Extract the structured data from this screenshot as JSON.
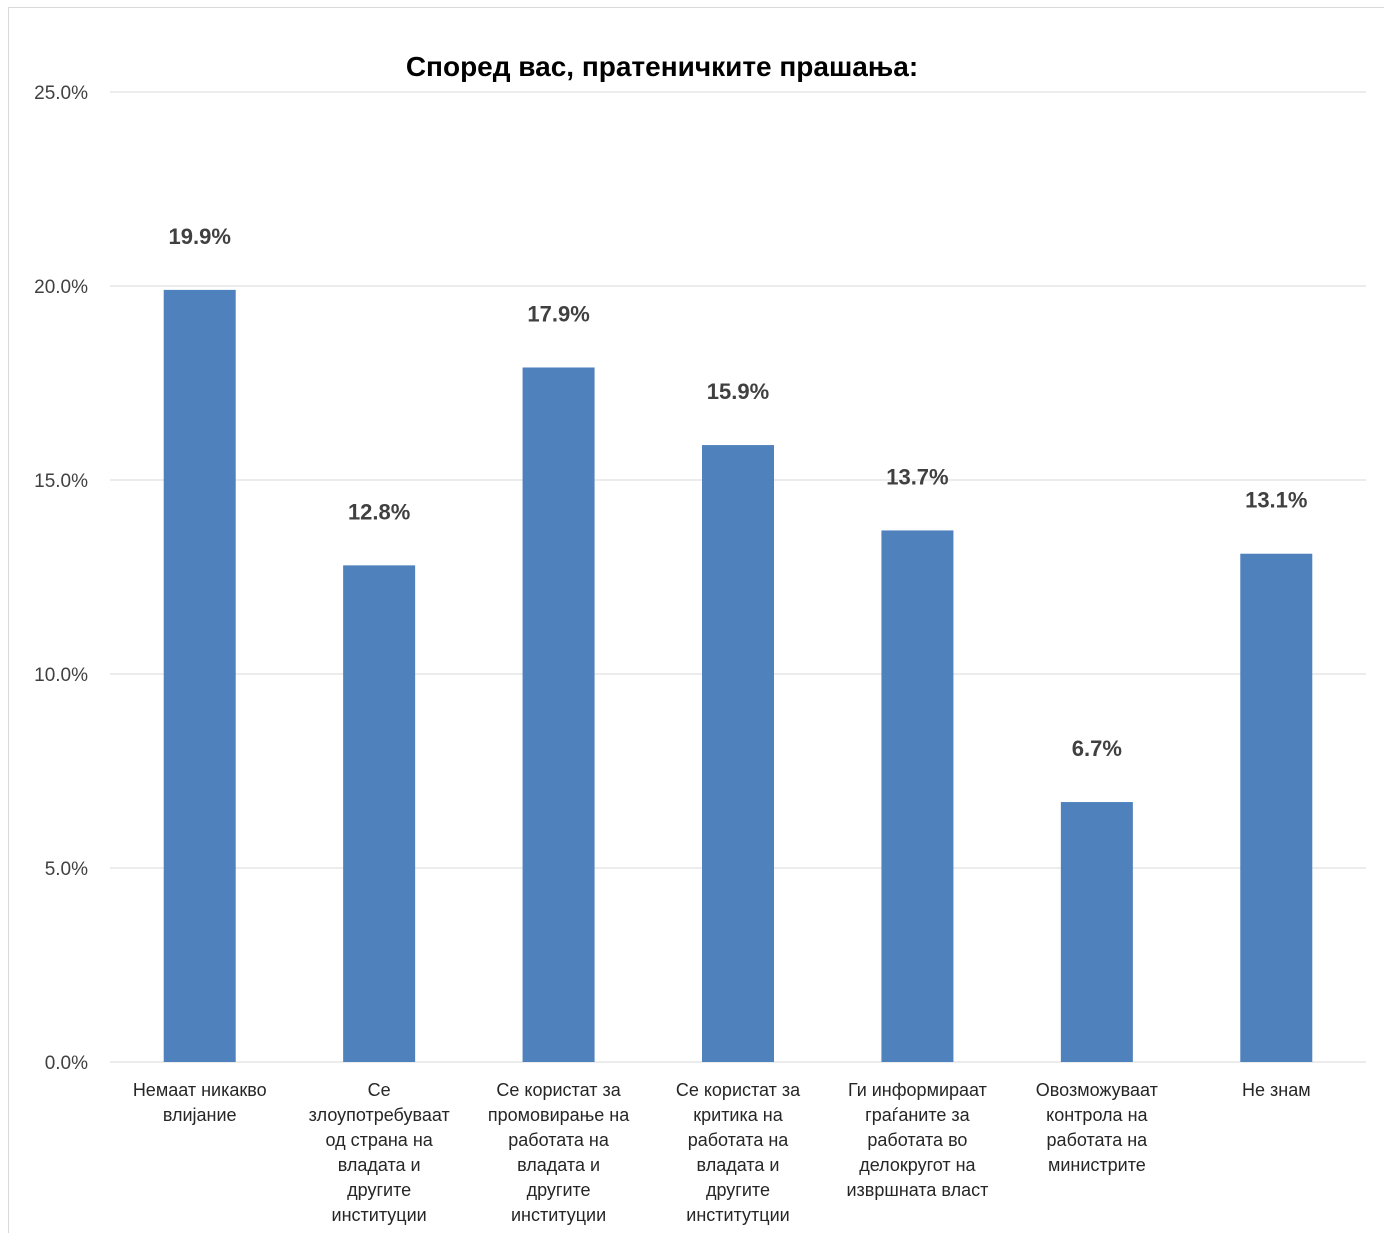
{
  "chart_data": {
    "type": "bar",
    "title": "Според вас, пратеничките прашања:",
    "xlabel": "",
    "ylabel": "",
    "ylim": [
      0,
      25
    ],
    "y_ticks": [
      "0.0%",
      "5.0%",
      "10.0%",
      "15.0%",
      "20.0%",
      "25.0%"
    ],
    "y_tick_values": [
      0,
      5,
      10,
      15,
      20,
      25
    ],
    "grid": true,
    "legend": "none",
    "bar_color": "#4f81bd",
    "categories": [
      "Немаат никакво влијание",
      "Се злоупотребуваат од страна на владата и другите институции",
      "Се користат за промовирање на работата на владата и другите институции",
      "Се користат за критика на работата на владата и другите институтции",
      "Ги информираат граѓаните за работата во делокругот на извршната власт",
      "Овозможуваат контрола на работата на министрите",
      "Не знам"
    ],
    "category_label_lines": [
      [
        "Немаат никакво",
        "влијание"
      ],
      [
        "Се",
        "злоупотребуваат",
        "од страна на",
        "владата и",
        "другите",
        "институции"
      ],
      [
        "Се користат за",
        "промовирање на",
        "работата на",
        "владата и",
        "другите",
        "институции"
      ],
      [
        "Се користат за",
        "критика на",
        "работата на",
        "владата и",
        "другите",
        "институтции"
      ],
      [
        "Ги информираат",
        "граѓаните за",
        "работата во",
        "делокругот на",
        "извршната власт"
      ],
      [
        "Овозможуваат",
        "контрола на",
        "работата на",
        "министрите"
      ],
      [
        "Не знам"
      ]
    ],
    "values": [
      19.9,
      12.8,
      17.9,
      15.9,
      13.7,
      6.7,
      13.1
    ],
    "data_labels": [
      "19.9%",
      "12.8%",
      "17.9%",
      "15.9%",
      "13.7%",
      "6.7%",
      "13.1%"
    ]
  }
}
